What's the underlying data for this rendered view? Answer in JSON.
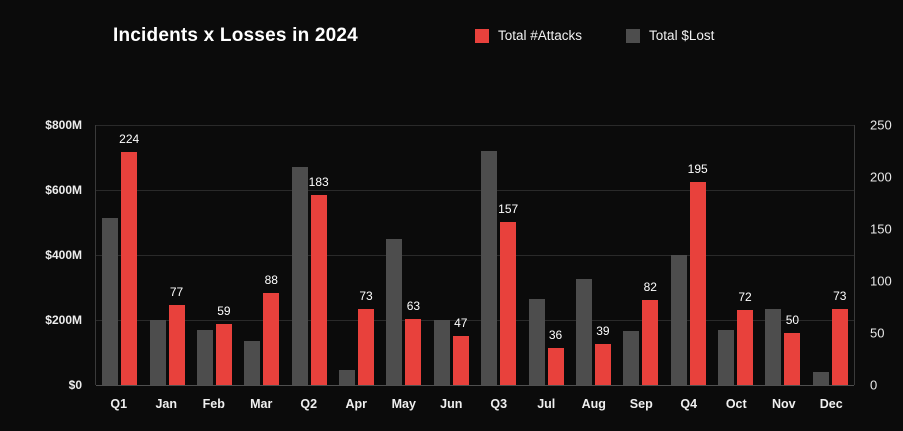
{
  "title": "Incidents x Losses in 2024",
  "legend": {
    "items": [
      {
        "label": "Total #Attacks",
        "color": "#e8413c"
      },
      {
        "label": "Total $Lost",
        "color": "#4d4d4d"
      }
    ]
  },
  "chart_data": {
    "type": "bar",
    "title": "Incidents x Losses in 2024",
    "categories": [
      "Q1",
      "Jan",
      "Feb",
      "Mar",
      "Q2",
      "Apr",
      "May",
      "Jun",
      "Q3",
      "Jul",
      "Aug",
      "Sep",
      "Q4",
      "Oct",
      "Nov",
      "Dec"
    ],
    "series": [
      {
        "name": "Total $Lost",
        "color": "#4d4d4d",
        "axis": "left",
        "show_value_labels": false,
        "values": [
          515,
          200,
          170,
          135,
          670,
          45,
          450,
          200,
          720,
          265,
          325,
          165,
          400,
          170,
          235,
          40
        ]
      },
      {
        "name": "Total #Attacks",
        "color": "#e8413c",
        "axis": "right",
        "show_value_labels": true,
        "values": [
          224,
          77,
          59,
          88,
          183,
          73,
          63,
          47,
          157,
          36,
          39,
          82,
          195,
          72,
          50,
          73
        ]
      }
    ],
    "left_axis": {
      "unit": "$M",
      "min": 0,
      "max": 800,
      "ticks": [
        "$0",
        "$200M",
        "$400M",
        "$600M",
        "$800M"
      ]
    },
    "right_axis": {
      "min": 0,
      "max": 250,
      "ticks": [
        "0",
        "50",
        "100",
        "150",
        "200",
        "250"
      ]
    },
    "grid": true,
    "legend_position": "top",
    "background": "#0b0b0b"
  }
}
